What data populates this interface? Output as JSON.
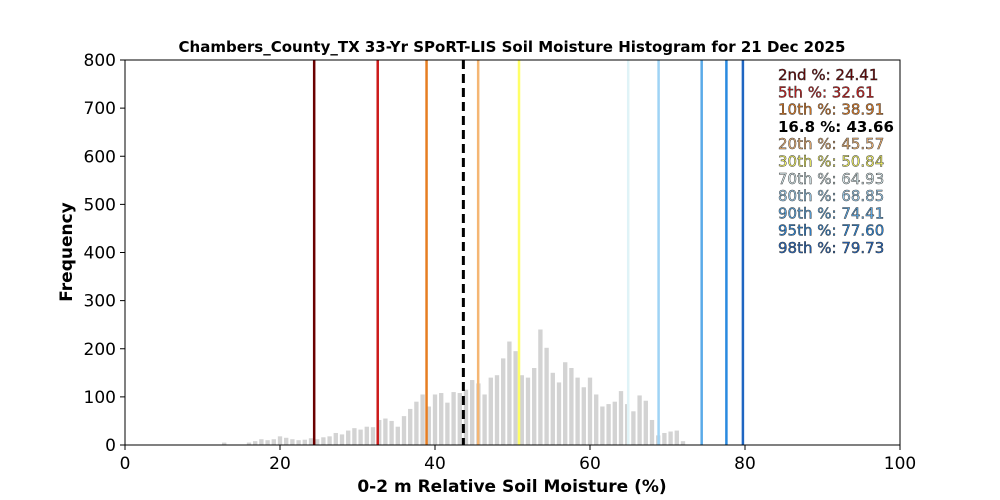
{
  "chart_data": {
    "type": "bar",
    "title": "Chambers_County_TX 33-Yr SPoRT-LIS Soil Moisture Histogram for 21 Dec 2025",
    "xlabel": "0-2 m Relative Soil Moisture (%)",
    "ylabel": "Frequency",
    "xlim": [
      0,
      100
    ],
    "ylim": [
      0,
      800
    ],
    "xticks": [
      0,
      20,
      40,
      60,
      80,
      100
    ],
    "yticks": [
      0,
      100,
      200,
      300,
      400,
      500,
      600,
      700,
      800
    ],
    "bar_color": "#d3d3d3",
    "histogram": {
      "bin_start": 12.4,
      "bin_width": 0.8,
      "counts": [
        5,
        0,
        0,
        0,
        5,
        8,
        12,
        10,
        12,
        18,
        15,
        12,
        10,
        11,
        14,
        12,
        16,
        18,
        25,
        22,
        30,
        35,
        32,
        38,
        37,
        52,
        55,
        50,
        38,
        60,
        75,
        90,
        105,
        80,
        105,
        108,
        88,
        110,
        108,
        115,
        135,
        128,
        105,
        140,
        145,
        180,
        215,
        195,
        145,
        140,
        160,
        240,
        202,
        150,
        130,
        172,
        160,
        140,
        120,
        140,
        105,
        80,
        85,
        90,
        112,
        85,
        70,
        103,
        92,
        52,
        20,
        25,
        28,
        30,
        8
      ]
    },
    "percentile_lines": [
      {
        "label": "2nd %: 24.41",
        "value": 24.41,
        "color": "#6b0000",
        "dashed": false
      },
      {
        "label": "5th %: 32.61",
        "value": 32.61,
        "color": "#cc1a1a",
        "dashed": false
      },
      {
        "label": "10th %: 38.91",
        "value": 38.91,
        "color": "#e67e22",
        "dashed": false
      },
      {
        "label": "16.8 %: 43.66",
        "value": 43.66,
        "color": "#000000",
        "dashed": true
      },
      {
        "label": "20th %: 45.57",
        "value": 45.57,
        "color": "#f5b673",
        "dashed": false
      },
      {
        "label": "30th %: 50.84",
        "value": 50.84,
        "color": "#ffff66",
        "dashed": false
      },
      {
        "label": "70th %: 64.93",
        "value": 64.93,
        "color": "#dff3f7",
        "dashed": false
      },
      {
        "label": "80th %: 68.85",
        "value": 68.85,
        "color": "#9fd3f5",
        "dashed": false
      },
      {
        "label": "90th %: 74.41",
        "value": 74.41,
        "color": "#5aaae8",
        "dashed": false
      },
      {
        "label": "95th %: 77.60",
        "value": 77.6,
        "color": "#2a8ae0",
        "dashed": false
      },
      {
        "label": "98th %: 79.73",
        "value": 79.73,
        "color": "#1f66c2",
        "dashed": false
      }
    ],
    "legend_placement": "top-right",
    "grid": false
  }
}
